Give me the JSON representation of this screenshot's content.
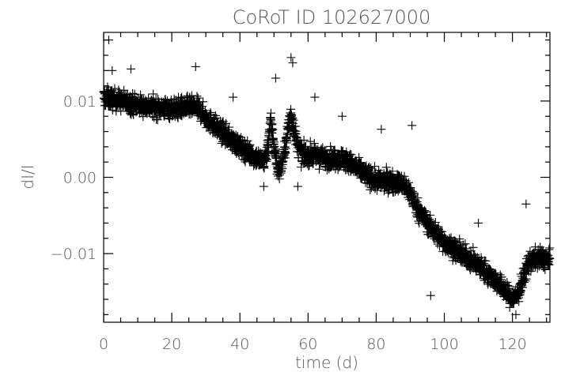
{
  "chart_data": {
    "type": "scatter",
    "title": "CoRoT ID 102627000",
    "xlabel": "time (d)",
    "ylabel": "dI/I",
    "xlim": [
      0,
      131
    ],
    "ylim": [
      -0.019,
      0.019
    ],
    "xticks": [
      0,
      20,
      40,
      60,
      80,
      100,
      120
    ],
    "xtick_labels": [
      "0",
      "20",
      "40",
      "60",
      "80",
      "100",
      "120"
    ],
    "yticks": [
      0.01,
      0.0,
      -0.01
    ],
    "ytick_labels": [
      "0.01",
      "0.00",
      "−0.01"
    ],
    "marker": "plus",
    "grid": false,
    "trend": {
      "x": [
        0,
        5,
        10,
        15,
        20,
        25,
        28,
        30,
        35,
        40,
        45,
        47,
        48,
        49,
        50,
        51,
        52,
        53,
        54,
        55,
        56,
        57,
        58,
        60,
        65,
        70,
        75,
        80,
        85,
        88,
        90,
        92,
        95,
        100,
        105,
        110,
        115,
        118,
        120,
        122,
        123,
        124,
        125,
        128,
        131
      ],
      "y": [
        0.0105,
        0.01,
        0.0095,
        0.0092,
        0.009,
        0.0092,
        0.009,
        0.0078,
        0.0058,
        0.004,
        0.0025,
        0.002,
        0.0035,
        0.0075,
        0.0045,
        0.001,
        0.0012,
        0.003,
        0.006,
        0.0085,
        0.006,
        0.004,
        0.003,
        0.003,
        0.0025,
        0.0025,
        0.001,
        -0.0005,
        -0.0005,
        -0.001,
        -0.002,
        -0.004,
        -0.006,
        -0.0085,
        -0.01,
        -0.0115,
        -0.0135,
        -0.015,
        -0.016,
        -0.015,
        -0.0135,
        -0.012,
        -0.011,
        -0.0105,
        -0.011
      ]
    },
    "outliers": [
      {
        "x": 1.5,
        "y": 0.018
      },
      {
        "x": 2.5,
        "y": 0.014
      },
      {
        "x": 8,
        "y": 0.0142
      },
      {
        "x": 27,
        "y": 0.0145
      },
      {
        "x": 38,
        "y": 0.0105
      },
      {
        "x": 50.5,
        "y": 0.013
      },
      {
        "x": 55,
        "y": 0.0157
      },
      {
        "x": 55.5,
        "y": 0.015
      },
      {
        "x": 47,
        "y": -0.0012
      },
      {
        "x": 62,
        "y": 0.0105
      },
      {
        "x": 70,
        "y": 0.008
      },
      {
        "x": 81.5,
        "y": 0.0063
      },
      {
        "x": 90.5,
        "y": 0.0068
      },
      {
        "x": 57,
        "y": -0.0012
      },
      {
        "x": 110,
        "y": -0.006
      },
      {
        "x": 124,
        "y": -0.0035
      },
      {
        "x": 96,
        "y": -0.0155
      },
      {
        "x": 121,
        "y": -0.018
      }
    ]
  }
}
